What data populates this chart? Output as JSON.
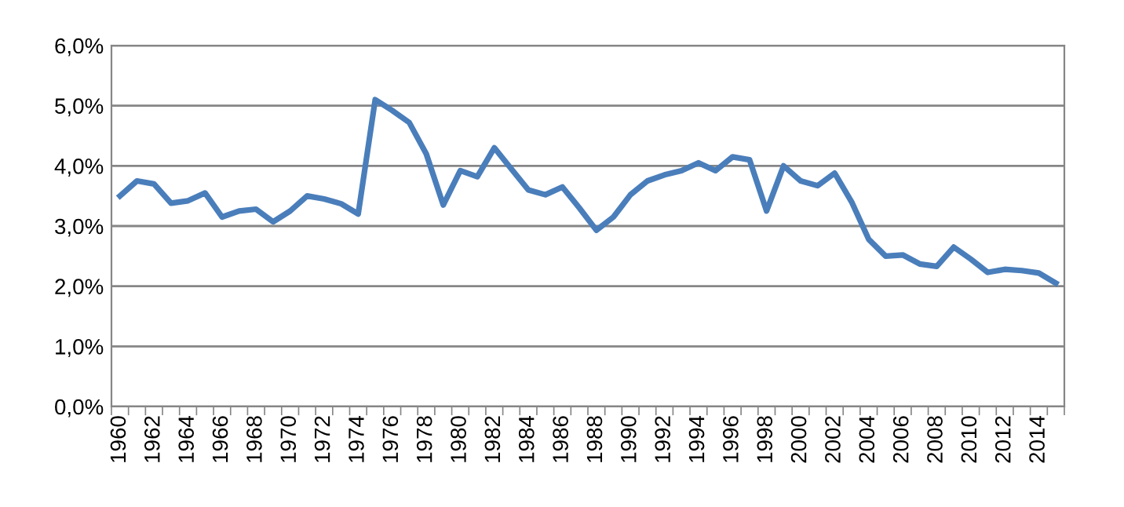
{
  "chart_data": {
    "type": "line",
    "categories": [
      "1960",
      null,
      "1962",
      null,
      "1964",
      null,
      "1966",
      null,
      "1968",
      null,
      "1970",
      null,
      "1972",
      null,
      "1974",
      null,
      "1976",
      null,
      "1978",
      null,
      "1980",
      null,
      "1982",
      null,
      "1984",
      null,
      "1986",
      null,
      "1988",
      null,
      "1990",
      null,
      "1992",
      null,
      "1994",
      null,
      "1996",
      null,
      "1998",
      null,
      "2000",
      null,
      "2002",
      null,
      "2004",
      null,
      "2006",
      null,
      "2008",
      null,
      "2010",
      null,
      "2012",
      null,
      "2014",
      null
    ],
    "series": [
      {
        "color": "#4a7ebb",
        "values": [
          3.5,
          3.75,
          3.7,
          3.38,
          3.42,
          3.55,
          3.15,
          3.25,
          3.28,
          3.07,
          3.25,
          3.5,
          3.45,
          3.37,
          3.2,
          5.1,
          4.92,
          4.72,
          4.2,
          3.35,
          3.92,
          3.82,
          4.3,
          3.95,
          3.6,
          3.52,
          3.65,
          3.3,
          2.93,
          3.15,
          3.52,
          3.75,
          3.85,
          3.92,
          4.05,
          3.92,
          4.15,
          4.1,
          3.25,
          4.0,
          3.75,
          3.67,
          3.88,
          3.4,
          2.78,
          2.5,
          2.52,
          2.37,
          2.33,
          2.65,
          2.45,
          2.23,
          2.28,
          2.26,
          2.22,
          2.05
        ]
      }
    ],
    "ylim": [
      0,
      6
    ],
    "yticks": [
      {
        "value": 0,
        "label": "0,0%"
      },
      {
        "value": 1,
        "label": "1,0%"
      },
      {
        "value": 2,
        "label": "2,0%"
      },
      {
        "value": 3,
        "label": "3,0%"
      },
      {
        "value": 4,
        "label": "4,0%"
      },
      {
        "value": 5,
        "label": "5,0%"
      },
      {
        "value": 6,
        "label": "6,0%"
      }
    ],
    "grid": "y",
    "legend": false,
    "marker": "none",
    "line_style": "solid"
  }
}
